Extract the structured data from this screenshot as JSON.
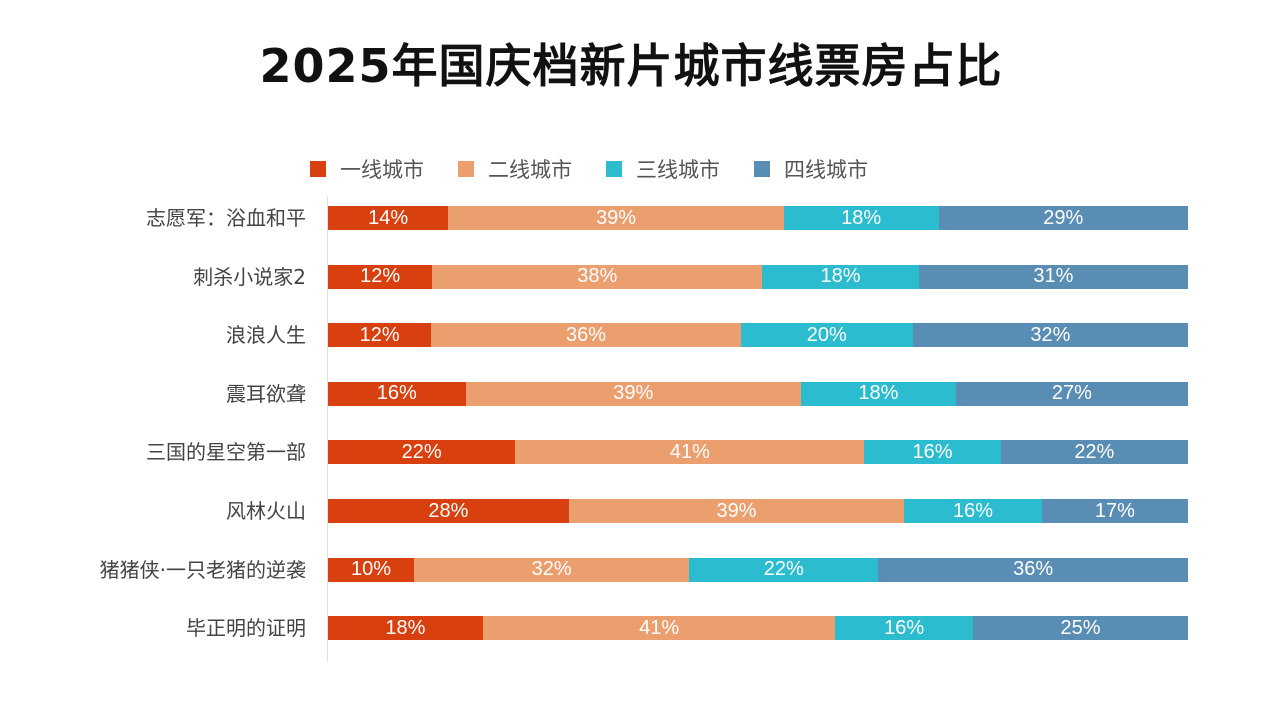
{
  "chart_data": {
    "type": "bar",
    "orientation": "horizontal",
    "stacked": "percent",
    "title": "2025年国庆档新片城市线票房占比",
    "xlabel": "",
    "ylabel": "",
    "xlim": [
      0,
      100
    ],
    "grid": false,
    "legend_position": "top",
    "categories": [
      "志愿军：浴血和平",
      "刺杀小说家2",
      "浪浪人生",
      "震耳欲聋",
      "三国的星空第一部",
      "风林火山",
      "猪猪侠·一只老猪的逆袭",
      "毕正明的证明"
    ],
    "series": [
      {
        "name": "一线城市",
        "color": "#d9400f",
        "values": [
          14,
          12,
          12,
          16,
          22,
          28,
          10,
          18
        ]
      },
      {
        "name": "二线城市",
        "color": "#eb9e6e",
        "values": [
          39,
          38,
          36,
          39,
          41,
          39,
          32,
          41
        ]
      },
      {
        "name": "三线城市",
        "color": "#2bbccf",
        "values": [
          18,
          18,
          20,
          18,
          16,
          16,
          22,
          16
        ]
      },
      {
        "name": "四线城市",
        "color": "#5a8db4",
        "values": [
          29,
          31,
          32,
          27,
          22,
          17,
          36,
          25
        ]
      }
    ],
    "value_suffix": "%"
  }
}
